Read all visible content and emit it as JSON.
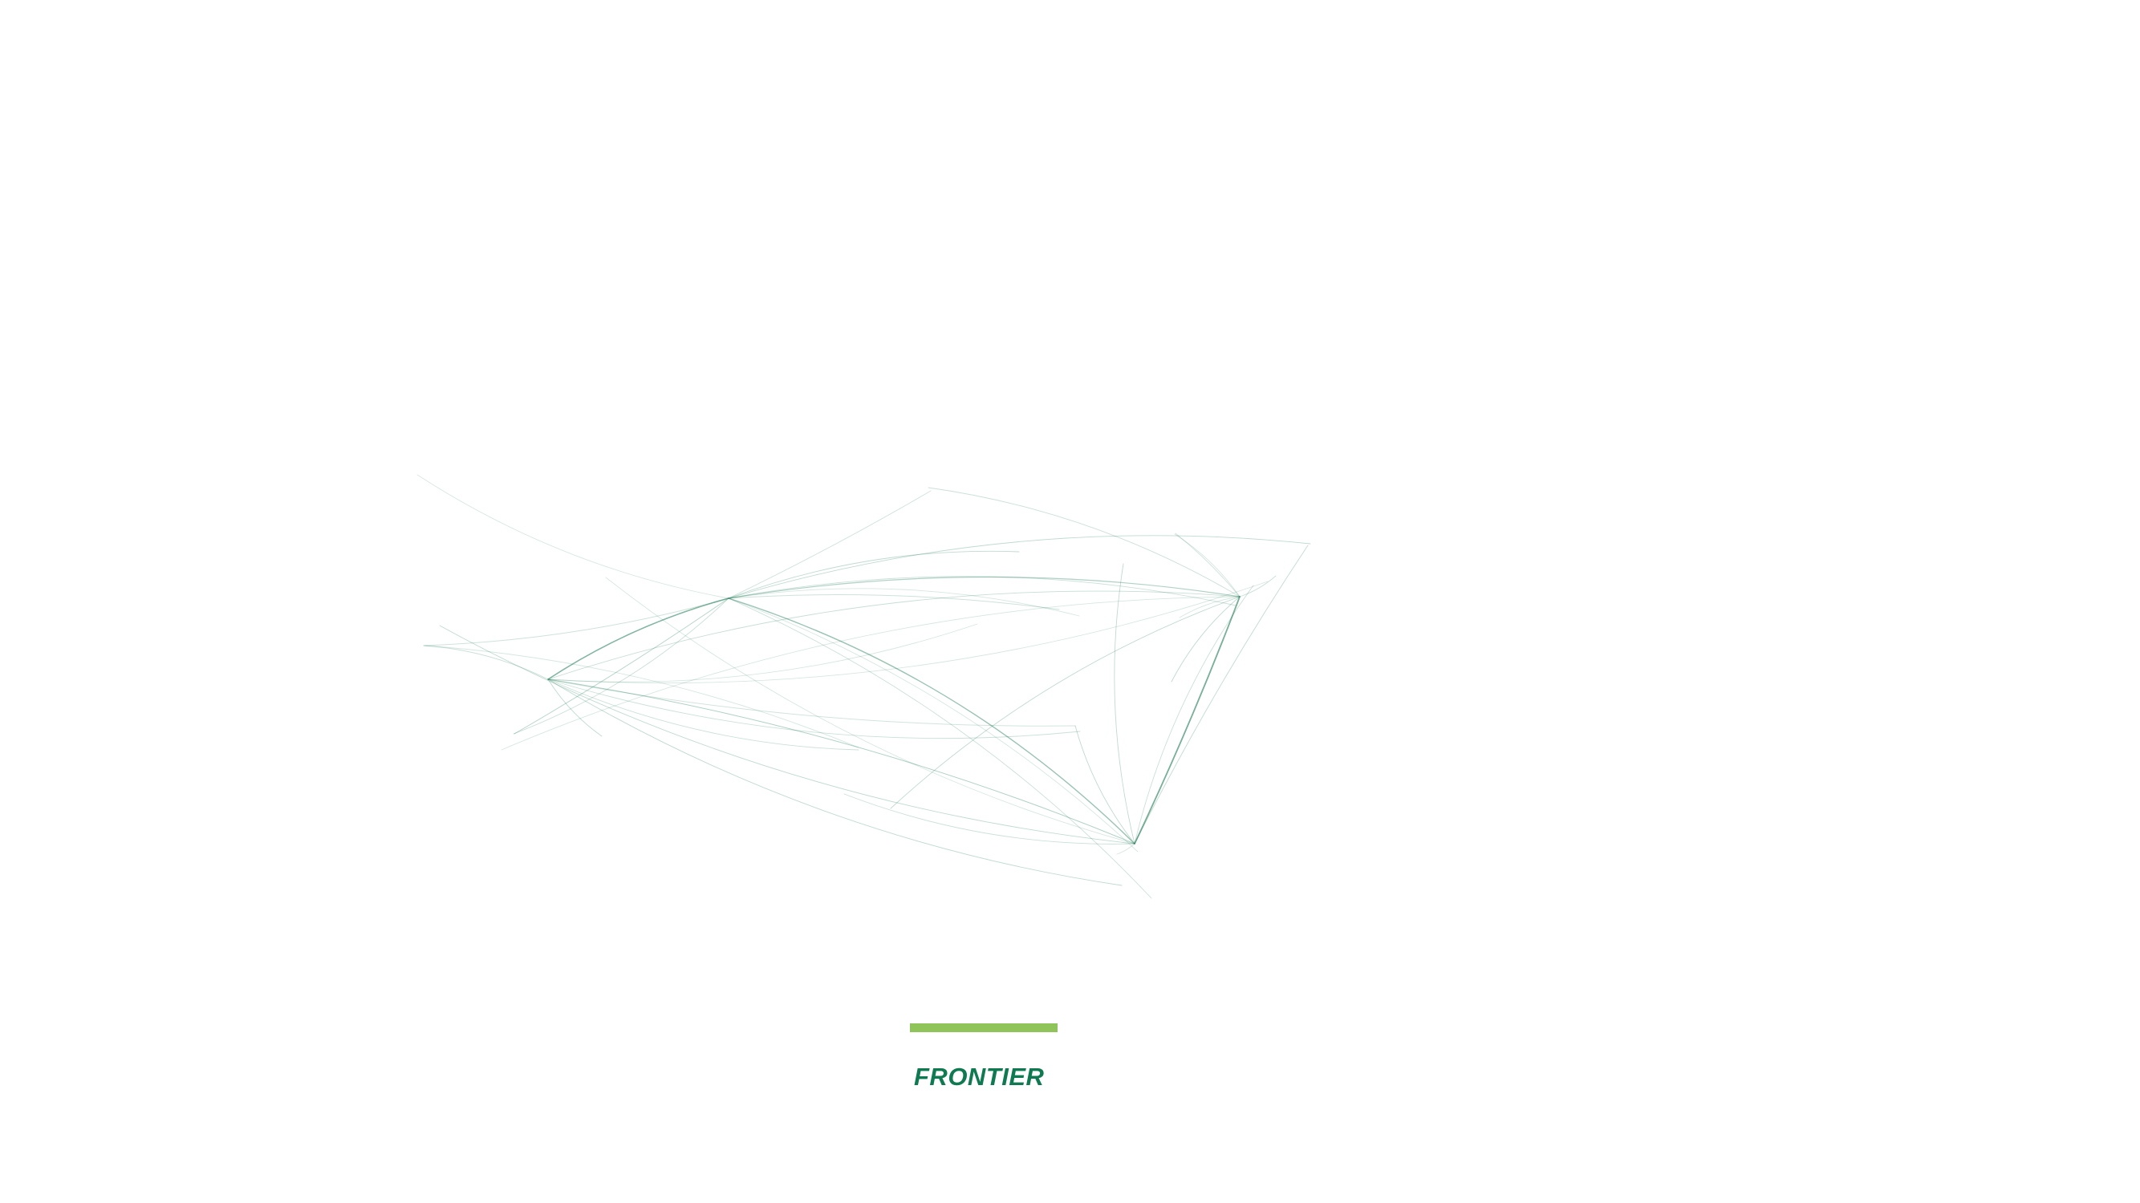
{
  "splash": {
    "brand_name": "FRONTIER",
    "loading_progress": 1.0
  },
  "colors": {
    "background": "#ffffff",
    "route_line": "#1e7a55",
    "loading_bar": "#8fc45a",
    "brand": "#0f7a52"
  },
  "icons": {
    "route_map": "route-map-illustration",
    "logo": "frontier-wordmark"
  }
}
